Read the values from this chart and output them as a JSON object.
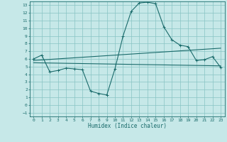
{
  "xlabel": "Humidex (Indice chaleur)",
  "ylabel": "",
  "bg_color": "#c6e8e8",
  "grid_color": "#88c4c4",
  "line_color": "#1a6b6b",
  "xlim": [
    -0.5,
    23.5
  ],
  "ylim": [
    -1.5,
    13.5
  ],
  "xticks": [
    0,
    1,
    2,
    3,
    4,
    5,
    6,
    7,
    8,
    9,
    10,
    11,
    12,
    13,
    14,
    15,
    16,
    17,
    18,
    19,
    20,
    21,
    22,
    23
  ],
  "yticks": [
    -1,
    0,
    1,
    2,
    3,
    4,
    5,
    6,
    7,
    8,
    9,
    10,
    11,
    12,
    13
  ],
  "line1_x": [
    0,
    1,
    2,
    3,
    4,
    5,
    6,
    7,
    8,
    9,
    10,
    11,
    12,
    13,
    14,
    15,
    16,
    17,
    18,
    19,
    20,
    21,
    22,
    23
  ],
  "line1_y": [
    6.0,
    6.5,
    4.3,
    4.5,
    4.8,
    4.7,
    4.6,
    1.8,
    1.5,
    1.3,
    4.7,
    9.0,
    12.2,
    13.3,
    13.4,
    13.2,
    10.2,
    8.5,
    7.8,
    7.6,
    5.8,
    5.9,
    6.3,
    4.9
  ],
  "line2_x": [
    0,
    23
  ],
  "line2_y": [
    5.5,
    5.1
  ],
  "line3_x": [
    0,
    23
  ],
  "line3_y": [
    5.8,
    7.4
  ]
}
